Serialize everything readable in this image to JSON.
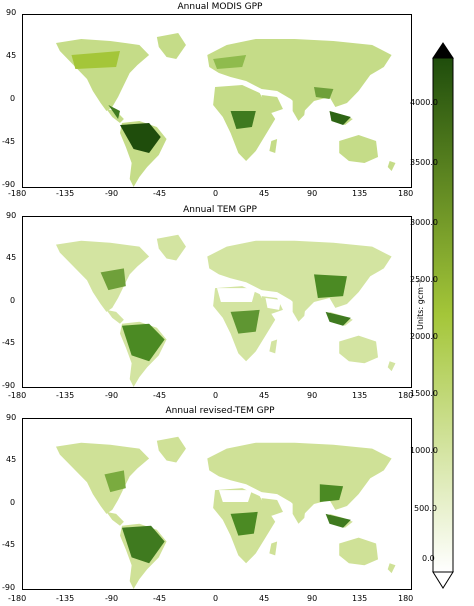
{
  "panels": [
    {
      "title": "Annual MODIS GPP"
    },
    {
      "title": "Annual TEM GPP"
    },
    {
      "title": "Annual revised-TEM GPP"
    }
  ],
  "axes": {
    "lat_ticks": [
      "90",
      "45",
      "0",
      "-45",
      "-90"
    ],
    "lon_ticks": [
      "-180",
      "-135",
      "-90",
      "-45",
      "0",
      "45",
      "90",
      "135",
      "180"
    ]
  },
  "colorbar": {
    "units": "Units: gcm⁻²",
    "ticks": [
      "4000.0",
      "3500.0",
      "3000.0",
      "2500.0",
      "2000.0",
      "1500.0",
      "1000.0",
      "500.0",
      "0.0"
    ],
    "min_color": "#ffffff",
    "mid_color": "#a4c639",
    "max_color": "#1f4d0c",
    "arrow_top_color": "#000000",
    "arrow_bottom_color": "#ffffff"
  }
}
